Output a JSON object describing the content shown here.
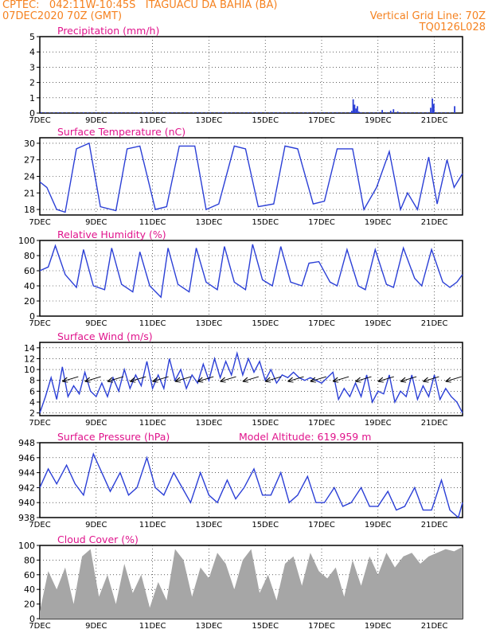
{
  "header": {
    "line1": "CPTEC:   042:11W-10:45S   ITAGUACU DA BAHIA (BA)",
    "line2": "07DEC2020 70Z (GMT)",
    "right1": "Vertical Grid Line: 70Z",
    "right2": "TQ0126L028",
    "altitude": "Model Altitude: 619.959 m"
  },
  "colors": {
    "series": "#2b3fd6",
    "title": "#e0148c",
    "cloud": "#a6a6a6",
    "header": "#f58220"
  },
  "x_ticks": [
    "7DEC",
    "9DEC",
    "11DEC",
    "13DEC",
    "15DEC",
    "17DEC",
    "19DEC",
    "21DEC"
  ],
  "chart_data": [
    {
      "type": "bar",
      "title": "Precipitation (mm/h)",
      "ylim": [
        0,
        5
      ],
      "yticks": [
        0,
        1,
        2,
        3,
        4,
        5
      ],
      "x": [
        0.05,
        0.2,
        0.35,
        0.5,
        0.65,
        0.8,
        0.95,
        1.1,
        1.25,
        1.4,
        1.55,
        1.7,
        1.85,
        2.0,
        2.15,
        2.3,
        2.45,
        2.6,
        2.75,
        2.9,
        3.05,
        3.2,
        3.35,
        3.5,
        3.65,
        3.8,
        3.95,
        4.1,
        4.25,
        4.4,
        4.55,
        4.7,
        4.85,
        5.0,
        5.15,
        5.3,
        5.45,
        5.6,
        5.75,
        5.9,
        6.05,
        6.2,
        6.35,
        6.5,
        6.65,
        6.8,
        6.95,
        7.1,
        7.25,
        7.4,
        7.55,
        7.7,
        7.85,
        8.0,
        8.15,
        8.3,
        8.45,
        8.6,
        8.75,
        8.9,
        9.05,
        9.2,
        9.35,
        9.5,
        9.65,
        9.8,
        9.95,
        10.1,
        10.25,
        10.4,
        10.55,
        10.7,
        10.85,
        11.0,
        11.07,
        11.12,
        11.17,
        11.22,
        11.27,
        11.32,
        11.4,
        11.55,
        11.7,
        11.85,
        12.0,
        12.15,
        12.3,
        12.45,
        12.55,
        12.7,
        12.85,
        13.0,
        13.15,
        13.3,
        13.45,
        13.6,
        13.75,
        13.87,
        13.93,
        13.98,
        14.1,
        14.25,
        14.4,
        14.55,
        14.72
      ],
      "values": [
        0.06,
        0.05,
        0.04,
        0.04,
        0.05,
        0.04,
        0.04,
        0.05,
        0.04,
        0.04,
        0.05,
        0.04,
        0.04,
        0.05,
        0.04,
        0.04,
        0.05,
        0.04,
        0.04,
        0.05,
        0.04,
        0.04,
        0.05,
        0.04,
        0.04,
        0.05,
        0.04,
        0.04,
        0.05,
        0.04,
        0.04,
        0.05,
        0.04,
        0.04,
        0.05,
        0.04,
        0.04,
        0.05,
        0.04,
        0.04,
        0.05,
        0.04,
        0.04,
        0.05,
        0.04,
        0.04,
        0.05,
        0.04,
        0.04,
        0.05,
        0.04,
        0.04,
        0.05,
        0.04,
        0.04,
        0.05,
        0.04,
        0.04,
        0.05,
        0.04,
        0.04,
        0.05,
        0.04,
        0.04,
        0.05,
        0.04,
        0.04,
        0.05,
        0.04,
        0.04,
        0.05,
        0.04,
        0.04,
        0.05,
        0.15,
        0.9,
        0.55,
        0.3,
        0.45,
        0.1,
        0.05,
        0.04,
        0.05,
        0.04,
        0.04,
        0.2,
        0.05,
        0.15,
        0.25,
        0.1,
        0.05,
        0.05,
        0.04,
        0.05,
        0.04,
        0.04,
        0.05,
        0.35,
        0.95,
        0.6,
        0.05,
        0.04,
        0.05,
        0.04,
        0.45
      ]
    },
    {
      "type": "line",
      "title": "Surface Temperature (nC)",
      "ylim": [
        17,
        31
      ],
      "yticks": [
        18,
        21,
        24,
        27,
        30
      ],
      "x": [
        0,
        0.25,
        0.6,
        0.9,
        1.3,
        1.75,
        2.15,
        2.7,
        3.1,
        3.55,
        4.1,
        4.5,
        4.95,
        5.5,
        5.9,
        6.35,
        6.9,
        7.3,
        7.75,
        8.3,
        8.7,
        9.15,
        9.7,
        10.1,
        10.55,
        11.1,
        11.5,
        11.95,
        12.4,
        12.8,
        13.05,
        13.4,
        13.8,
        14.1,
        14.45,
        14.7,
        15
      ],
      "values": [
        23,
        22,
        18,
        17.5,
        29,
        30,
        18.5,
        17.8,
        29,
        29.5,
        18,
        18.5,
        29.5,
        29.5,
        18,
        19,
        29.5,
        29,
        18.5,
        19,
        29.5,
        29,
        19,
        19.5,
        29,
        29,
        18,
        22,
        28.5,
        18,
        21,
        18,
        27.5,
        19,
        27,
        22,
        24.5
      ]
    },
    {
      "type": "line",
      "title": "Relative Humidity (%)",
      "ylim": [
        0,
        100
      ],
      "yticks": [
        0,
        20,
        40,
        60,
        80,
        100
      ],
      "x": [
        0,
        0.3,
        0.55,
        0.9,
        1.3,
        1.55,
        1.9,
        2.3,
        2.55,
        2.9,
        3.3,
        3.55,
        3.9,
        4.3,
        4.55,
        4.9,
        5.3,
        5.55,
        5.9,
        6.3,
        6.55,
        6.9,
        7.3,
        7.55,
        7.9,
        8.25,
        8.55,
        8.9,
        9.3,
        9.55,
        9.9,
        10.3,
        10.55,
        10.9,
        11.3,
        11.55,
        11.9,
        12.3,
        12.55,
        12.9,
        13.3,
        13.55,
        13.9,
        14.3,
        14.55,
        14.8,
        15
      ],
      "values": [
        60,
        65,
        93,
        55,
        38,
        88,
        40,
        35,
        90,
        42,
        32,
        85,
        40,
        25,
        90,
        42,
        32,
        90,
        45,
        35,
        92,
        45,
        35,
        95,
        48,
        40,
        92,
        45,
        40,
        70,
        72,
        45,
        40,
        88,
        40,
        35,
        88,
        42,
        38,
        90,
        50,
        40,
        88,
        45,
        38,
        45,
        55
      ]
    },
    {
      "type": "line",
      "title": "Surface Wind (m/s)",
      "ylim": [
        1.5,
        15
      ],
      "yticks": [
        2,
        4,
        6,
        8,
        10,
        12,
        14
      ],
      "x": [
        0,
        0.2,
        0.4,
        0.6,
        0.8,
        1.0,
        1.2,
        1.4,
        1.6,
        1.8,
        2.0,
        2.2,
        2.4,
        2.6,
        2.8,
        3.0,
        3.2,
        3.4,
        3.6,
        3.8,
        4.0,
        4.2,
        4.4,
        4.6,
        4.8,
        5.0,
        5.2,
        5.4,
        5.6,
        5.8,
        6.0,
        6.2,
        6.4,
        6.6,
        6.8,
        7.0,
        7.2,
        7.4,
        7.6,
        7.8,
        8.0,
        8.2,
        8.4,
        8.6,
        8.8,
        9.0,
        9.2,
        9.4,
        9.6,
        9.8,
        10.0,
        10.2,
        10.4,
        10.6,
        10.8,
        11.0,
        11.2,
        11.4,
        11.6,
        11.8,
        12.0,
        12.2,
        12.4,
        12.6,
        12.8,
        13.0,
        13.2,
        13.4,
        13.6,
        13.8,
        14.0,
        14.2,
        14.4,
        14.6,
        14.8,
        15.0
      ],
      "values": [
        2,
        5,
        8.5,
        4.5,
        10.5,
        5,
        7,
        5.5,
        9.5,
        6,
        5,
        7.5,
        5,
        8.5,
        6,
        10,
        6.5,
        9,
        7,
        11.5,
        6.5,
        9,
        6.5,
        12,
        8,
        10,
        6.5,
        9,
        7.5,
        11,
        8,
        12,
        8.5,
        11.5,
        9,
        13,
        9,
        12,
        9.5,
        11.5,
        8,
        10,
        7.5,
        9,
        8.5,
        9.5,
        8.5,
        8,
        8.5,
        8,
        7.5,
        8.5,
        9.5,
        4.5,
        6.5,
        5,
        7.5,
        5,
        9,
        4,
        6,
        5.5,
        9,
        4,
        6,
        5,
        9,
        4.5,
        7,
        5,
        9,
        4.5,
        6.5,
        5,
        4,
        2
      ]
    },
    {
      "type": "line",
      "title": "Surface Pressure (hPa)",
      "ylim": [
        938,
        948
      ],
      "yticks": [
        938,
        940,
        942,
        944,
        946,
        948
      ],
      "x": [
        0,
        0.3,
        0.6,
        0.95,
        1.25,
        1.55,
        1.9,
        2.2,
        2.5,
        2.85,
        3.15,
        3.45,
        3.8,
        4.1,
        4.4,
        4.75,
        5.05,
        5.35,
        5.7,
        6.0,
        6.3,
        6.65,
        6.95,
        7.25,
        7.6,
        7.9,
        8.2,
        8.55,
        8.85,
        9.15,
        9.5,
        9.8,
        10.1,
        10.45,
        10.75,
        11.05,
        11.4,
        11.7,
        12.0,
        12.35,
        12.65,
        12.95,
        13.3,
        13.6,
        13.9,
        14.25,
        14.55,
        14.85,
        15
      ],
      "values": [
        942,
        944.5,
        942.5,
        945,
        942.5,
        941,
        946.5,
        944,
        941.5,
        944,
        941,
        942,
        946,
        942,
        941,
        944,
        942,
        940,
        944,
        941,
        940,
        943,
        940.5,
        942,
        944.5,
        941,
        941,
        944,
        940,
        941,
        943.5,
        940,
        940,
        942,
        939.5,
        940,
        942,
        939.5,
        939.5,
        941.5,
        939,
        939.5,
        942,
        939,
        939,
        943,
        939,
        938,
        940
      ]
    },
    {
      "type": "area",
      "title": "Cloud Cover (%)",
      "ylim": [
        0,
        100
      ],
      "yticks": [
        0,
        20,
        40,
        60,
        80,
        100
      ],
      "x": [
        0,
        0.3,
        0.6,
        0.9,
        1.2,
        1.5,
        1.8,
        2.1,
        2.4,
        2.7,
        3.0,
        3.3,
        3.6,
        3.9,
        4.2,
        4.5,
        4.8,
        5.1,
        5.4,
        5.7,
        6.0,
        6.3,
        6.6,
        6.9,
        7.2,
        7.5,
        7.8,
        8.1,
        8.4,
        8.7,
        9.0,
        9.3,
        9.6,
        9.9,
        10.2,
        10.5,
        10.8,
        11.1,
        11.4,
        11.7,
        12.0,
        12.3,
        12.6,
        12.9,
        13.2,
        13.5,
        13.8,
        14.1,
        14.4,
        14.7,
        15
      ],
      "values": [
        10,
        65,
        40,
        70,
        20,
        85,
        95,
        30,
        60,
        20,
        75,
        35,
        60,
        15,
        50,
        25,
        95,
        80,
        30,
        70,
        55,
        90,
        75,
        40,
        80,
        95,
        35,
        60,
        25,
        75,
        85,
        45,
        90,
        65,
        55,
        70,
        30,
        80,
        45,
        85,
        60,
        90,
        70,
        85,
        90,
        75,
        85,
        90,
        95,
        92,
        98
      ]
    }
  ]
}
